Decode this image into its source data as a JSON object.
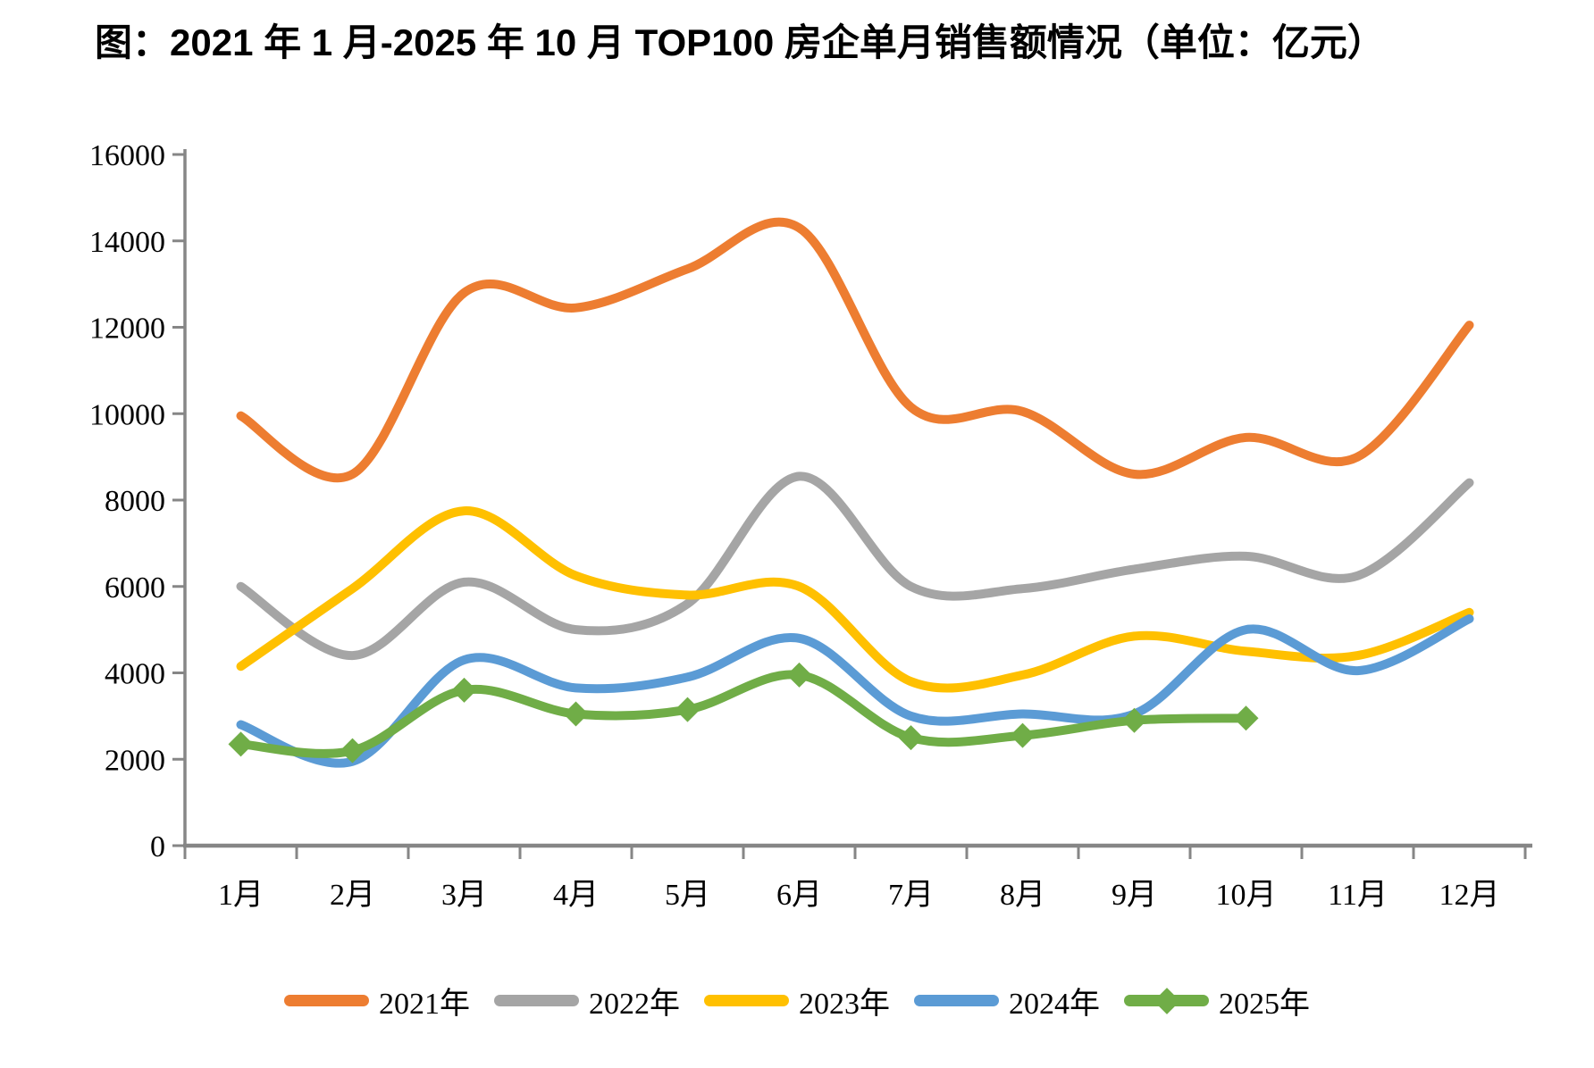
{
  "title": "图：2021 年 1 月-2025 年 10 月 TOP100 房企单月销售额情况（单位：亿元）",
  "colors": {
    "axis": "#868686",
    "label_text": "#000000",
    "background": "#ffffff"
  },
  "chart_data": {
    "type": "line",
    "title": "图：2021 年 1 月-2025 年 10 月 TOP100 房企单月销售额情况（单位：亿元）",
    "unit": "亿元",
    "categories": [
      "1月",
      "2月",
      "3月",
      "4月",
      "5月",
      "6月",
      "7月",
      "8月",
      "9月",
      "10月",
      "11月",
      "12月"
    ],
    "y_ticks": [
      "0",
      "2000",
      "4000",
      "6000",
      "8000",
      "10000",
      "12000",
      "14000",
      "16000"
    ],
    "ylim": [
      0,
      16000
    ],
    "ytick_step": 2000,
    "grid": false,
    "line_style": "smooth",
    "legend_position": "bottom",
    "series": [
      {
        "name": "2021年",
        "color": "#ED7D31",
        "marker": "none",
        "values": [
          9950,
          8600,
          12800,
          12450,
          13350,
          14300,
          10150,
          10050,
          8600,
          9450,
          9000,
          12050
        ]
      },
      {
        "name": "2022年",
        "color": "#A5A5A5",
        "marker": "none",
        "values": [
          6000,
          4400,
          6100,
          5000,
          5600,
          8550,
          6000,
          5950,
          6400,
          6700,
          6250,
          8400
        ]
      },
      {
        "name": "2023年",
        "color": "#FFC000",
        "marker": "none",
        "values": [
          4150,
          5950,
          7750,
          6250,
          5800,
          6000,
          3800,
          3950,
          4850,
          4500,
          4400,
          5400
        ]
      },
      {
        "name": "2024年",
        "color": "#5B9BD5",
        "marker": "none",
        "values": [
          2800,
          1950,
          4300,
          3650,
          3900,
          4800,
          3000,
          3050,
          3050,
          5000,
          4050,
          5250
        ]
      },
      {
        "name": "2025年",
        "color": "#70AD47",
        "marker": "diamond",
        "values": [
          2350,
          2200,
          3600,
          3050,
          3150,
          3950,
          2500,
          2550,
          2900,
          2950
        ]
      }
    ]
  }
}
